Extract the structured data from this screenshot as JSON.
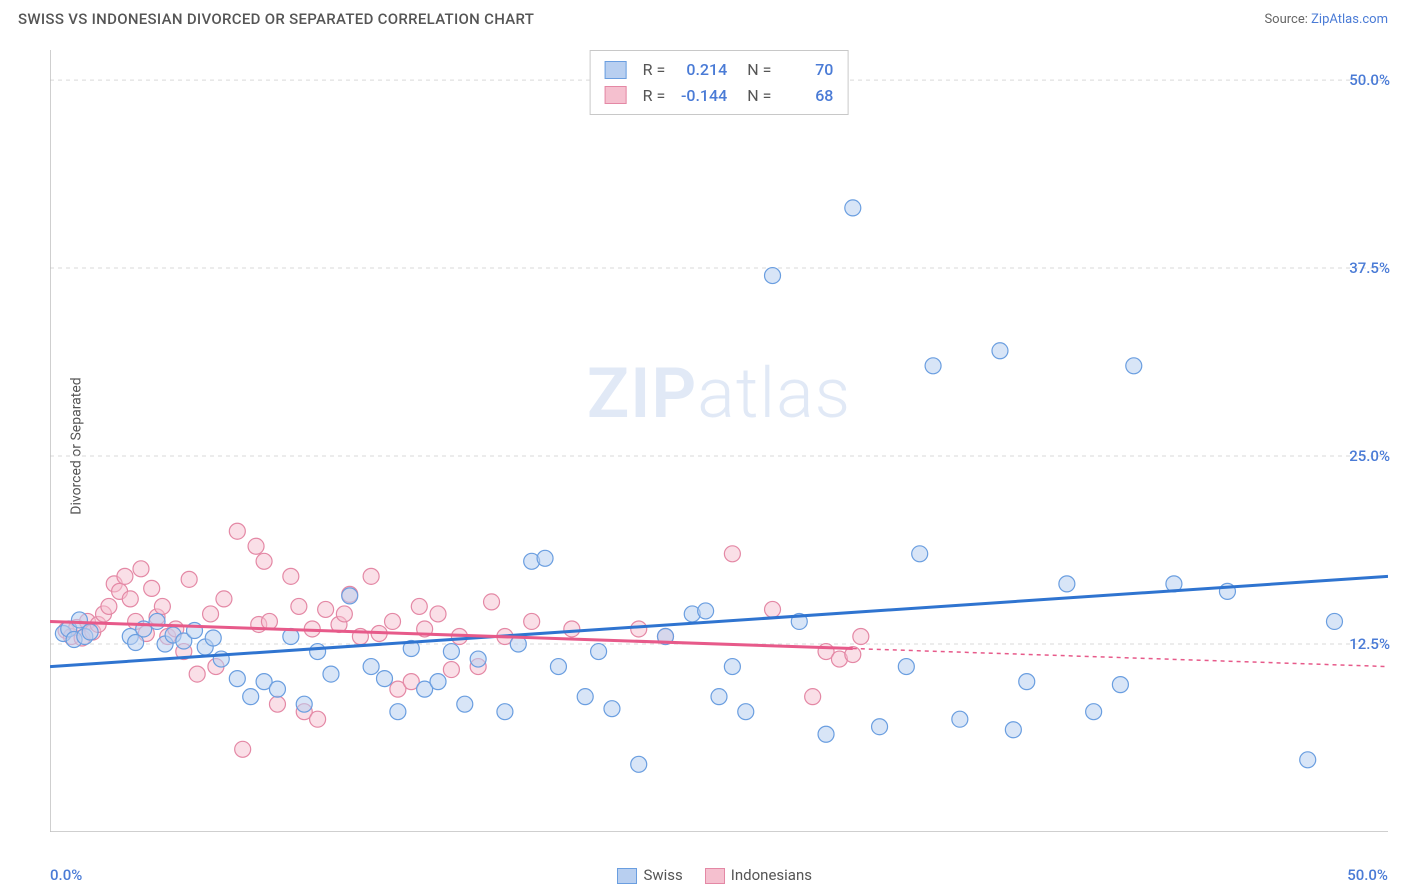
{
  "title": "SWISS VS INDONESIAN DIVORCED OR SEPARATED CORRELATION CHART",
  "source_label": "Source:",
  "source_link": "ZipAtlas.com",
  "ylabel": "Divorced or Separated",
  "watermark_bold": "ZIP",
  "watermark_light": "atlas",
  "chart": {
    "type": "scatter",
    "xlim": [
      0,
      50
    ],
    "ylim": [
      0,
      52
    ],
    "xticks": [
      0,
      6.25,
      12.5,
      18.75,
      25,
      31.25,
      37.5,
      43.75,
      50
    ],
    "yticks": [
      12.5,
      25.0,
      37.5,
      50.0
    ],
    "ytick_labels": [
      "12.5%",
      "25.0%",
      "37.5%",
      "50.0%"
    ],
    "xlabel_min": "0.0%",
    "xlabel_max": "50.0%",
    "grid_color": "#d9d9d9",
    "axis_color": "#bfbfbf",
    "background": "#ffffff",
    "marker_radius": 8,
    "series": [
      {
        "name": "Swiss",
        "fill": "#b8cff0",
        "stroke": "#6a9ee0",
        "fill_opacity": 0.55,
        "regression": {
          "x1": 0,
          "y1": 11.0,
          "x2": 50,
          "y2": 17.0,
          "color": "#2f74d0",
          "width": 3,
          "dash": "none"
        },
        "stats": {
          "R": "0.214",
          "N": "70"
        },
        "points": [
          [
            0.5,
            13.2
          ],
          [
            0.7,
            13.5
          ],
          [
            0.9,
            12.8
          ],
          [
            1.1,
            14.1
          ],
          [
            1.3,
            13.0
          ],
          [
            1.5,
            13.3
          ],
          [
            3.0,
            13.0
          ],
          [
            3.2,
            12.6
          ],
          [
            3.5,
            13.5
          ],
          [
            4.0,
            14.0
          ],
          [
            4.3,
            12.5
          ],
          [
            4.6,
            13.1
          ],
          [
            5.0,
            12.7
          ],
          [
            5.4,
            13.4
          ],
          [
            5.8,
            12.3
          ],
          [
            6.1,
            12.9
          ],
          [
            6.4,
            11.5
          ],
          [
            7.0,
            10.2
          ],
          [
            7.5,
            9.0
          ],
          [
            8.0,
            10.0
          ],
          [
            8.5,
            9.5
          ],
          [
            9.0,
            13.0
          ],
          [
            9.5,
            8.5
          ],
          [
            10.0,
            12.0
          ],
          [
            10.5,
            10.5
          ],
          [
            11.2,
            15.7
          ],
          [
            12.0,
            11.0
          ],
          [
            12.5,
            10.2
          ],
          [
            13.0,
            8.0
          ],
          [
            13.5,
            12.2
          ],
          [
            14.0,
            9.5
          ],
          [
            14.5,
            10.0
          ],
          [
            15.0,
            12.0
          ],
          [
            15.5,
            8.5
          ],
          [
            16.0,
            11.5
          ],
          [
            17.0,
            8.0
          ],
          [
            17.5,
            12.5
          ],
          [
            18.0,
            18.0
          ],
          [
            18.5,
            18.2
          ],
          [
            19.0,
            11.0
          ],
          [
            20.0,
            9.0
          ],
          [
            20.5,
            12.0
          ],
          [
            21.0,
            8.2
          ],
          [
            22.0,
            4.5
          ],
          [
            23.0,
            13.0
          ],
          [
            24.0,
            14.5
          ],
          [
            24.5,
            14.7
          ],
          [
            25.0,
            9.0
          ],
          [
            25.5,
            11.0
          ],
          [
            26.0,
            8.0
          ],
          [
            27.0,
            37.0
          ],
          [
            28.0,
            14.0
          ],
          [
            29.0,
            6.5
          ],
          [
            30.0,
            41.5
          ],
          [
            31.0,
            7.0
          ],
          [
            32.0,
            11.0
          ],
          [
            32.5,
            18.5
          ],
          [
            33.0,
            31.0
          ],
          [
            34.0,
            7.5
          ],
          [
            35.5,
            32.0
          ],
          [
            36.0,
            6.8
          ],
          [
            36.5,
            10.0
          ],
          [
            38.0,
            16.5
          ],
          [
            39.0,
            8.0
          ],
          [
            40.0,
            9.8
          ],
          [
            40.5,
            31.0
          ],
          [
            42.0,
            16.5
          ],
          [
            44.0,
            16.0
          ],
          [
            47.0,
            4.8
          ],
          [
            48.0,
            14.0
          ]
        ]
      },
      {
        "name": "Indonesians",
        "fill": "#f5c0cf",
        "stroke": "#e488a5",
        "fill_opacity": 0.5,
        "regression": {
          "x1": 0,
          "y1": 14.0,
          "x2": 30,
          "y2": 12.2,
          "color": "#e75a8a",
          "width": 3,
          "dash": "none",
          "extrapolate": {
            "x2": 50,
            "y2": 11.0,
            "dash": "4,4",
            "width": 1.5
          }
        },
        "stats": {
          "R": "-0.144",
          "N": "68"
        },
        "points": [
          [
            0.6,
            13.4
          ],
          [
            0.8,
            13.0
          ],
          [
            1.0,
            13.6
          ],
          [
            1.2,
            12.9
          ],
          [
            1.4,
            14.0
          ],
          [
            1.6,
            13.3
          ],
          [
            1.8,
            13.8
          ],
          [
            2.0,
            14.5
          ],
          [
            2.2,
            15.0
          ],
          [
            2.4,
            16.5
          ],
          [
            2.6,
            16.0
          ],
          [
            2.8,
            17.0
          ],
          [
            3.0,
            15.5
          ],
          [
            3.2,
            14.0
          ],
          [
            3.4,
            17.5
          ],
          [
            3.6,
            13.2
          ],
          [
            3.8,
            16.2
          ],
          [
            4.0,
            14.3
          ],
          [
            4.2,
            15.0
          ],
          [
            4.4,
            13.0
          ],
          [
            4.7,
            13.5
          ],
          [
            5.0,
            12.0
          ],
          [
            5.2,
            16.8
          ],
          [
            5.5,
            10.5
          ],
          [
            6.0,
            14.5
          ],
          [
            6.2,
            11.0
          ],
          [
            6.5,
            15.5
          ],
          [
            7.0,
            20.0
          ],
          [
            7.2,
            5.5
          ],
          [
            7.7,
            19.0
          ],
          [
            7.8,
            13.8
          ],
          [
            8.0,
            18.0
          ],
          [
            8.2,
            14.0
          ],
          [
            8.5,
            8.5
          ],
          [
            9.0,
            17.0
          ],
          [
            9.5,
            8.0
          ],
          [
            9.3,
            15.0
          ],
          [
            9.8,
            13.5
          ],
          [
            10.0,
            7.5
          ],
          [
            10.3,
            14.8
          ],
          [
            10.8,
            13.8
          ],
          [
            11.0,
            14.5
          ],
          [
            11.2,
            15.8
          ],
          [
            11.6,
            13.0
          ],
          [
            12.0,
            17.0
          ],
          [
            12.3,
            13.2
          ],
          [
            12.8,
            14.0
          ],
          [
            13.0,
            9.5
          ],
          [
            13.5,
            10.0
          ],
          [
            13.8,
            15.0
          ],
          [
            14.0,
            13.5
          ],
          [
            14.5,
            14.5
          ],
          [
            15.0,
            10.8
          ],
          [
            15.3,
            13.0
          ],
          [
            16.0,
            11.0
          ],
          [
            16.5,
            15.3
          ],
          [
            17.0,
            13.0
          ],
          [
            18.0,
            14.0
          ],
          [
            19.5,
            13.5
          ],
          [
            22.0,
            13.5
          ],
          [
            23.0,
            13.0
          ],
          [
            25.5,
            18.5
          ],
          [
            27.0,
            14.8
          ],
          [
            28.5,
            9.0
          ],
          [
            29.0,
            12.0
          ],
          [
            29.5,
            11.5
          ],
          [
            30.0,
            11.8
          ],
          [
            30.3,
            13.0
          ]
        ]
      }
    ],
    "bottom_legend": [
      "Swiss",
      "Indonesians"
    ]
  }
}
